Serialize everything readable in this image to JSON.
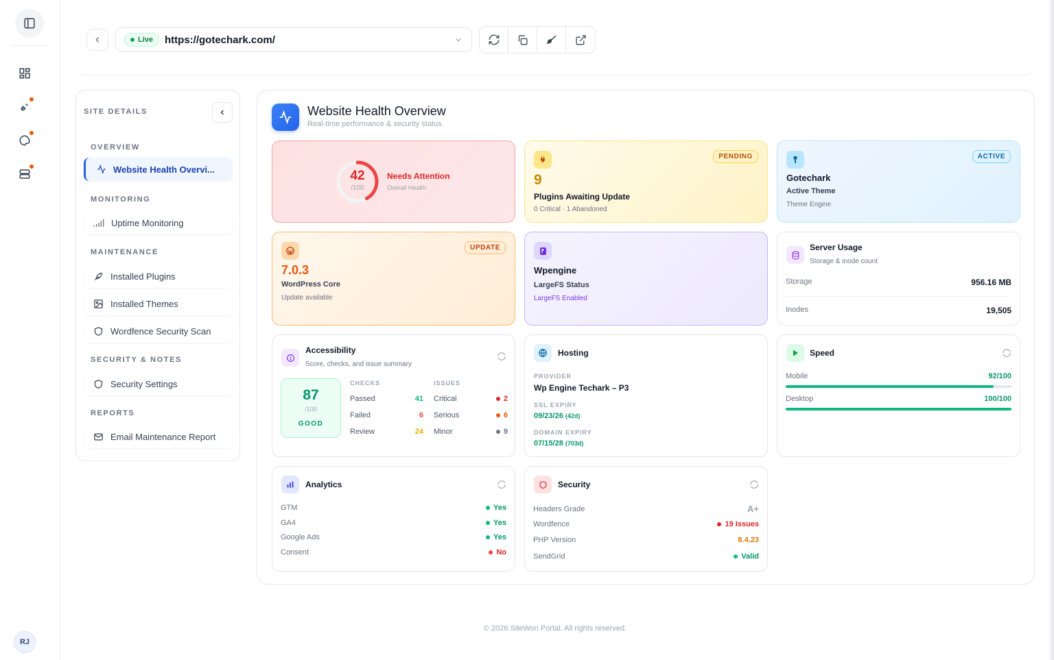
{
  "top": {
    "live_label": "Live",
    "url": "https://gotechark.com/"
  },
  "sidebar": {
    "title": "SITE DETAILS",
    "sections": [
      {
        "label": "OVERVIEW",
        "items": [
          {
            "label": "Website Health Overvi..."
          }
        ]
      },
      {
        "label": "MONITORING",
        "items": [
          {
            "label": "Uptime Monitoring"
          }
        ]
      },
      {
        "label": "MAINTENANCE",
        "items": [
          {
            "label": "Installed Plugins"
          },
          {
            "label": "Installed Themes"
          },
          {
            "label": "Wordfence Security Scan"
          }
        ]
      },
      {
        "label": "SECURITY & NOTES",
        "items": [
          {
            "label": "Security Settings"
          }
        ]
      },
      {
        "label": "REPORTS",
        "items": [
          {
            "label": "Email Maintenance Report"
          }
        ]
      }
    ]
  },
  "header": {
    "title": "Website Health Overview",
    "subtitle": "Real-time performance & security status"
  },
  "health": {
    "score": "42",
    "of": "/100",
    "score_value": 42,
    "status": "Needs Attention",
    "caption": "Overall Health"
  },
  "plugins": {
    "badge": "PENDING",
    "count": "9",
    "title": "Plugins Awaiting Update",
    "detail": "0 Critical · 1 Abandoned"
  },
  "theme": {
    "badge": "ACTIVE",
    "name": "Gotechark",
    "title": "Active Theme",
    "detail": "Theme Engine"
  },
  "core": {
    "badge": "UPDATE",
    "version": "7.0.3",
    "title": "WordPress Core",
    "detail": "Update available"
  },
  "wpengine": {
    "name": "Wpengine",
    "title": "LargeFS Status",
    "detail": "LargeFS Enabled"
  },
  "server": {
    "title": "Server Usage",
    "subtitle": "Storage & inode count",
    "storage_label": "Storage",
    "storage_value": "956.16 MB",
    "inodes_label": "Inodes",
    "inodes_value": "19,505"
  },
  "accessibility": {
    "title": "Accessibility",
    "subtitle": "Score, checks, and issue summary",
    "score": "87",
    "of": "/100",
    "grade": "GOOD",
    "checks_header": "CHECKS",
    "issues_header": "ISSUES",
    "checks": [
      {
        "label": "Passed",
        "value": "41",
        "color": "#10b981"
      },
      {
        "label": "Failed",
        "value": "6",
        "color": "#ef4444"
      },
      {
        "label": "Review",
        "value": "24",
        "color": "#eab308"
      }
    ],
    "issues": [
      {
        "label": "Critical",
        "value": "2",
        "color": "#dc2626"
      },
      {
        "label": "Serious",
        "value": "6",
        "color": "#ea580c"
      },
      {
        "label": "Minor",
        "value": "9",
        "color": "#6b7280"
      }
    ]
  },
  "hosting": {
    "title": "Hosting",
    "provider_label": "PROVIDER",
    "provider": "Wp Engine Techark – P3",
    "ssl_label": "SSL EXPIRY",
    "ssl_date": "09/23/26",
    "ssl_days": "(42d)",
    "domain_label": "DOMAIN EXPIRY",
    "domain_date": "07/15/28",
    "domain_days": "(703d)"
  },
  "speed": {
    "title": "Speed",
    "mobile_label": "Mobile",
    "mobile_value": "92/100",
    "mobile_score": 92,
    "desktop_label": "Desktop",
    "desktop_value": "100/100",
    "desktop_score": 100
  },
  "analytics": {
    "title": "Analytics",
    "rows": [
      {
        "label": "GTM",
        "value": "Yes"
      },
      {
        "label": "GA4",
        "value": "Yes"
      },
      {
        "label": "Google Ads",
        "value": "Yes"
      },
      {
        "label": "Consent",
        "value": "No"
      }
    ]
  },
  "security": {
    "title": "Security",
    "rows": [
      {
        "label": "Headers Grade",
        "value": "A+"
      },
      {
        "label": "Wordfence",
        "value": "19 Issues"
      },
      {
        "label": "PHP Version",
        "value": "8.4.23"
      },
      {
        "label": "SendGrid",
        "value": "Valid"
      }
    ]
  },
  "user": {
    "initials": "RJ"
  },
  "footer": "© 2026 SiteWon Portal. All rights reserved."
}
